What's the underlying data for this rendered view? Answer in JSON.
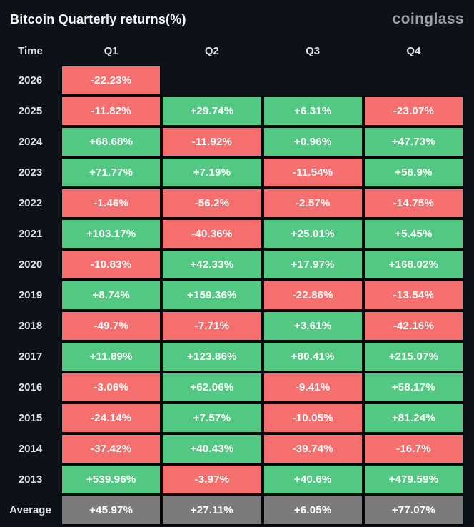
{
  "header": {
    "title": "Bitcoin Quarterly returns(%)",
    "logo_text": "coinglass"
  },
  "colors": {
    "background": "#0d1118",
    "positive": "#52c882",
    "negative": "#f56f6f",
    "average": "#7b7b7b",
    "grid": "#05070a",
    "cell_text": "#ffffff",
    "label_text": "#dce1e8",
    "logo": "#9aa0a6"
  },
  "chart_data": {
    "type": "heatmap",
    "title": "Bitcoin Quarterly returns(%)",
    "columns": [
      "Time",
      "Q1",
      "Q2",
      "Q3",
      "Q4"
    ],
    "rows": [
      {
        "label": "2026",
        "values": [
          "-22.23%",
          null,
          null,
          null
        ]
      },
      {
        "label": "2025",
        "values": [
          "-11.82%",
          "+29.74%",
          "+6.31%",
          "-23.07%"
        ]
      },
      {
        "label": "2024",
        "values": [
          "+68.68%",
          "-11.92%",
          "+0.96%",
          "+47.73%"
        ]
      },
      {
        "label": "2023",
        "values": [
          "+71.77%",
          "+7.19%",
          "-11.54%",
          "+56.9%"
        ]
      },
      {
        "label": "2022",
        "values": [
          "-1.46%",
          "-56.2%",
          "-2.57%",
          "-14.75%"
        ]
      },
      {
        "label": "2021",
        "values": [
          "+103.17%",
          "-40.36%",
          "+25.01%",
          "+5.45%"
        ]
      },
      {
        "label": "2020",
        "values": [
          "-10.83%",
          "+42.33%",
          "+17.97%",
          "+168.02%"
        ]
      },
      {
        "label": "2019",
        "values": [
          "+8.74%",
          "+159.36%",
          "-22.86%",
          "-13.54%"
        ]
      },
      {
        "label": "2018",
        "values": [
          "-49.7%",
          "-7.71%",
          "+3.61%",
          "-42.16%"
        ]
      },
      {
        "label": "2017",
        "values": [
          "+11.89%",
          "+123.86%",
          "+80.41%",
          "+215.07%"
        ]
      },
      {
        "label": "2016",
        "values": [
          "-3.06%",
          "+62.06%",
          "-9.41%",
          "+58.17%"
        ]
      },
      {
        "label": "2015",
        "values": [
          "-24.14%",
          "+7.57%",
          "-10.05%",
          "+81.24%"
        ]
      },
      {
        "label": "2014",
        "values": [
          "-37.42%",
          "+40.43%",
          "-39.74%",
          "-16.7%"
        ]
      },
      {
        "label": "2013",
        "values": [
          "+539.96%",
          "-3.97%",
          "+40.6%",
          "+479.59%"
        ]
      },
      {
        "label": "Average",
        "values": [
          "+45.97%",
          "+27.11%",
          "+6.05%",
          "+77.07%"
        ],
        "is_average": true
      }
    ]
  }
}
